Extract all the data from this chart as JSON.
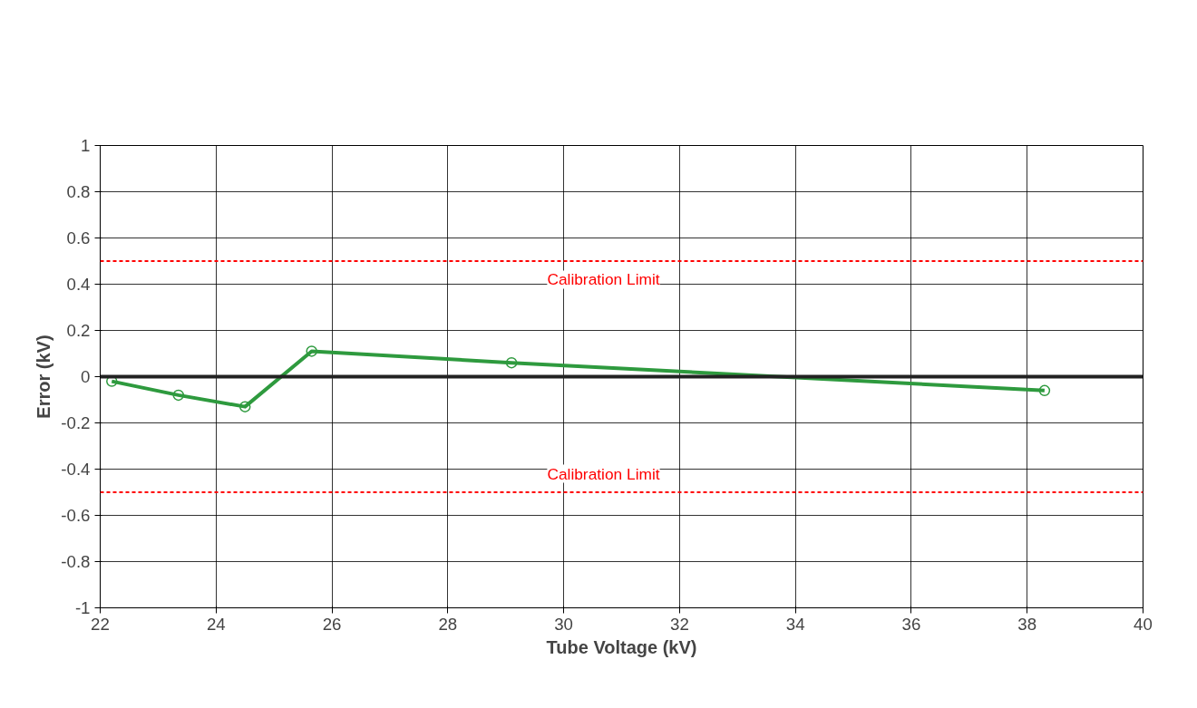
{
  "chart_data": {
    "type": "line",
    "xlabel": "Tube Voltage (kV)",
    "ylabel": "Error (kV)",
    "x": [
      22.2,
      23.35,
      24.5,
      25.65,
      29.1,
      38.3
    ],
    "series": [
      {
        "color": "#2e9a3e",
        "values": [
          -0.02,
          -0.08,
          -0.13,
          0.11,
          0.06,
          -0.06
        ]
      }
    ],
    "xlim": [
      22,
      40
    ],
    "ylim": [
      -1,
      1
    ],
    "xticks": [
      22,
      24,
      26,
      28,
      30,
      32,
      34,
      36,
      38,
      40
    ],
    "yticks": [
      -1,
      -0.8,
      -0.6,
      -0.4,
      -0.2,
      0,
      0.2,
      0.4,
      0.6,
      0.8,
      1
    ],
    "ref_lines": [
      {
        "axis": "y",
        "value": 0.5,
        "label": "Calibration Limit",
        "color": "#ff0000",
        "line_style": "dashed"
      },
      {
        "axis": "y",
        "value": 0,
        "label": null,
        "color": "#222222",
        "line_style": "solid"
      },
      {
        "axis": "y",
        "value": -0.5,
        "label": "Calibration Limit",
        "color": "#ff0000",
        "line_style": "dashed"
      }
    ],
    "grid": true,
    "marker": "circle",
    "line_style": "solid"
  }
}
